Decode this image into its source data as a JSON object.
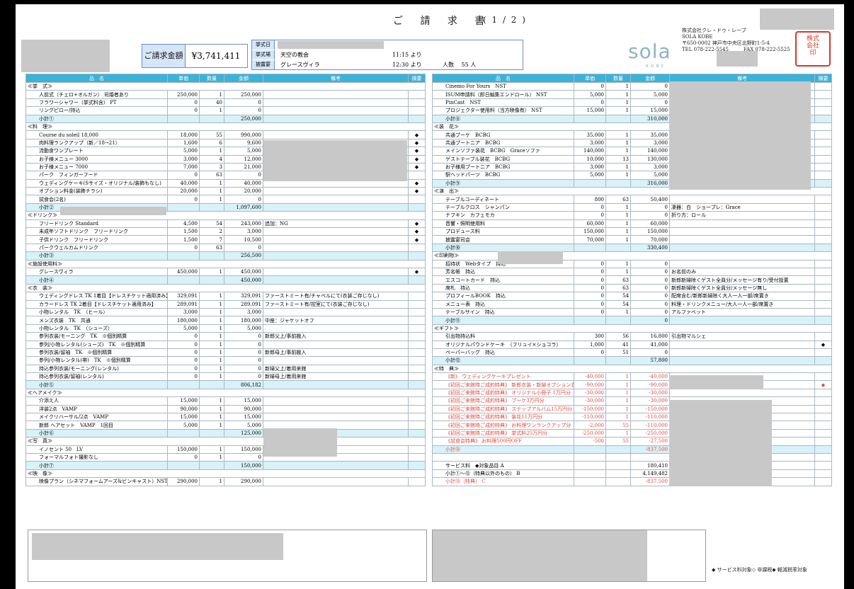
{
  "title": "ご 請 求 書",
  "page": "( 1 / 2 )",
  "total": {
    "label": "ご請求金額",
    "value": "¥3,741,411"
  },
  "event": {
    "rows": [
      {
        "label": "挙式日",
        "value": "",
        "time": ""
      },
      {
        "label": "挙式場",
        "value": "天空の教会",
        "time": "11:15 より"
      },
      {
        "label": "披露宴",
        "value": "グレースヴィラ",
        "time": "12:30 より"
      }
    ],
    "party": "人数　 55 人"
  },
  "logo": {
    "text": "sola",
    "sub": "KOBE"
  },
  "company": {
    "lines": [
      "株式会社クレ・ドゥ・レーブ",
      "SOLA KOBE",
      "〒650-0002 神戸市中央区北野町1-5-4",
      "TEL 078-222-5545　　　FAX 078-222-5525"
    ]
  },
  "stamp": "株式会社クレドゥレーブ印",
  "headers": [
    "品　名",
    "単価",
    "数量",
    "金額",
    "備考",
    "摘要"
  ],
  "left": [
    {
      "t": "s",
      "n": "≪挙　式≫"
    },
    {
      "n": "人前式（チェロ+オルガン） 司婚者あり",
      "p": "250,000",
      "q": "1",
      "a": "250,000"
    },
    {
      "n": "フラワーシャワー（挙式料含） PT",
      "p": "0",
      "q": "40",
      "a": "0"
    },
    {
      "n": "リングピロー/持込",
      "p": "0",
      "q": "1",
      "a": "0"
    },
    {
      "t": "u",
      "n": "小計①",
      "a": "250,000"
    },
    {
      "t": "s",
      "n": "≪料　理≫"
    },
    {
      "n": "Course du soleil 18,000",
      "p": "18,000",
      "q": "55",
      "a": "990,000",
      "m": "◆"
    },
    {
      "n": "肉料理ランクアップ（新／18→21）",
      "p": "1,600",
      "q": "6",
      "a": "9,600",
      "m": "◆"
    },
    {
      "n": "流動食ワンプレート",
      "p": "5,000",
      "q": "1",
      "a": "5,000",
      "m": "◆"
    },
    {
      "n": "お子様メニュー 3000",
      "p": "3,000",
      "q": "4",
      "a": "12,000",
      "m": "◆"
    },
    {
      "n": "お子様メニュー 7000",
      "p": "7,000",
      "q": "3",
      "a": "21,000",
      "m": "◆"
    },
    {
      "n": "パーク　フィンガーフード",
      "p": "0",
      "q": "63",
      "a": "0"
    },
    {
      "n": "ウェディングケーキ(Sサイズ・オリジナル/装飾もなし)",
      "p": "40,000",
      "q": "1",
      "a": "40,000",
      "m": "◆"
    },
    {
      "n": "オプション料金(装飾チラシ)",
      "p": "20,000",
      "q": "1",
      "a": "20,000",
      "m": "◆"
    },
    {
      "n": "試食会(2名)",
      "p": "0",
      "q": "1",
      "a": "0"
    },
    {
      "t": "u",
      "n": "小計②",
      "a": "1,097,600"
    },
    {
      "t": "s",
      "n": "≪ドリンク≫"
    },
    {
      "n": "フリードリンク Standard",
      "p": "4,500",
      "q": "54",
      "a": "243,000",
      "b": "追加：NG",
      "m": "◆"
    },
    {
      "n": "未成年ソフトドリンク　フリードリンク",
      "p": "1,500",
      "q": "2",
      "a": "3,000",
      "m": "◆"
    },
    {
      "n": "子供ドリンク　フリードリンク",
      "p": "1,500",
      "q": "7",
      "a": "10,500",
      "m": "◆"
    },
    {
      "n": "パークウェルカムドリンク",
      "p": "0",
      "q": "63",
      "a": "0"
    },
    {
      "t": "u",
      "n": "小計③",
      "a": "256,500"
    },
    {
      "t": "s",
      "n": "≪施設使用料≫"
    },
    {
      "n": "グレースヴィラ",
      "p": "450,000",
      "q": "1",
      "a": "450,000",
      "m": "◆"
    },
    {
      "t": "u",
      "n": "小計④",
      "a": "450,000"
    },
    {
      "t": "s",
      "n": "≪衣　装≫"
    },
    {
      "n": "ウェディングドレス TK 1着目【ドレスチケット適用済み】",
      "p": "329,091",
      "q": "1",
      "a": "329,091",
      "b": "ファーストミート有/チャペルにて(衣装ご存じなし)"
    },
    {
      "n": "カラードレス TK 2着目【ドレスチケット適用済み】",
      "p": "289,091",
      "q": "1",
      "a": "289,091",
      "b": "ファーストミート有/控室にて(衣装ご存じなし)"
    },
    {
      "n": "小物レンタル　TK　（ヒール）",
      "p": "3,000",
      "q": "1",
      "a": "3,000"
    },
    {
      "n": "メンズ衣装　TK　共通",
      "p": "180,000",
      "q": "1",
      "a": "180,000",
      "b": "中座：ジャケットオフ"
    },
    {
      "n": "小物レンタル　TK　（シューズ）",
      "p": "5,000",
      "q": "1",
      "a": "5,000"
    },
    {
      "n": "参列衣装/モーニング　TK　※個別精算",
      "p": "0",
      "q": "1",
      "a": "0",
      "b": "新郎父上/事前搬入"
    },
    {
      "n": "参列/小物レンタル(シューズ)　TK　※個別精算",
      "p": "0",
      "q": "1",
      "a": "0"
    },
    {
      "n": "参列衣装/留袖　TK　※個別精算",
      "p": "0",
      "q": "1",
      "a": "0",
      "b": "新郎母上/事前搬入"
    },
    {
      "n": "参列/小物レンタル(帯)　TK　※個別精算",
      "p": "0",
      "q": "1",
      "a": "0"
    },
    {
      "n": "持込参列衣装/モーニング(レンタル)",
      "p": "0",
      "q": "1",
      "a": "0",
      "b": "新婦父上/着用来館"
    },
    {
      "n": "持込参列衣装/留袖(レンタル)",
      "p": "0",
      "q": "1",
      "a": "0",
      "b": "新婦母上/着用来館"
    },
    {
      "t": "u",
      "n": "小計⑤",
      "a": "806,182"
    },
    {
      "t": "s",
      "n": "≪ヘアメイク≫"
    },
    {
      "n": "介添え人",
      "p": "15,000",
      "q": "1",
      "a": "15,000"
    },
    {
      "n": "洋装2点　VAMP",
      "p": "90,000",
      "q": "1",
      "a": "90,000"
    },
    {
      "n": "メイクリハーサル/2点　VAMP",
      "p": "15,000",
      "q": "1",
      "a": "15,000"
    },
    {
      "n": "新郎 ヘアセット　VAMP　1回目",
      "p": "5,000",
      "q": "1",
      "a": "5,000"
    },
    {
      "t": "u",
      "n": "小計⑥",
      "a": "125,000"
    },
    {
      "t": "s",
      "n": "≪写　真≫"
    },
    {
      "n": "イノセント 50　LV",
      "p": "150,000",
      "q": "1",
      "a": "150,000"
    },
    {
      "n": "フォーマルフォト撮影なし",
      "p": "0",
      "q": "1",
      "a": "0"
    },
    {
      "t": "u",
      "n": "小計⑦",
      "a": "150,000"
    },
    {
      "t": "s",
      "n": "≪映　像≫"
    },
    {
      "n": "映像プラン（シネマフォームアーズ&ビンキャスト）NST",
      "p": "290,000",
      "q": "1",
      "a": "290,000"
    }
  ],
  "right": [
    {
      "n": "Cinemo For Yours　NST",
      "p": "0",
      "q": "1",
      "a": "0"
    },
    {
      "n": "ISUM申請料（即日編集エンドロール） NST",
      "p": "5,000",
      "q": "1",
      "a": "5,000"
    },
    {
      "n": "PinCast　NST",
      "p": "0",
      "q": "1",
      "a": "0"
    },
    {
      "n": "プロジェクター使用料（当方映像有） NST",
      "p": "15,000",
      "q": "1",
      "a": "15,000"
    },
    {
      "t": "u",
      "n": "小計⑧",
      "a": "310,000"
    },
    {
      "t": "s",
      "n": "≪装　花≫"
    },
    {
      "n": "共通ブーケ　BCBG",
      "p": "35,000",
      "q": "1",
      "a": "35,000"
    },
    {
      "n": "共通ブートニア　BCBG",
      "p": "3,000",
      "q": "1",
      "a": "3,000"
    },
    {
      "n": "メインソファ装花　BCBG　Graceソファ",
      "p": "140,000",
      "q": "1",
      "a": "140,000"
    },
    {
      "n": "ゲストテーブル装花　BCBG",
      "p": "10,000",
      "q": "13",
      "a": "130,000"
    },
    {
      "n": "お子様用ブートニア　BCBG",
      "p": "3,000",
      "q": "1",
      "a": "3,000"
    },
    {
      "n": "駅ヘッドパーツ　BCBG",
      "p": "5,000",
      "q": "1",
      "a": "5,000"
    },
    {
      "t": "u",
      "n": "小計⑨",
      "a": "316,000"
    },
    {
      "t": "s",
      "n": "≪演　出≫"
    },
    {
      "n": "テーブルコーディネート",
      "p": "800",
      "q": "63",
      "a": "50,400"
    },
    {
      "n": "テーブルクロス　シャンパン",
      "p": "0",
      "q": "1",
      "a": "0",
      "b": "凄器：白　ショープレ：Grace"
    },
    {
      "n": "ナフキン　カフェモカ",
      "p": "0",
      "q": "1",
      "a": "0",
      "b": "折り方：ロール"
    },
    {
      "n": "音響・照明使用料",
      "p": "60,000",
      "q": "1",
      "a": "60,000"
    },
    {
      "n": "プロデュース料",
      "p": "150,000",
      "q": "1",
      "a": "150,000"
    },
    {
      "n": "披露宴司会",
      "p": "70,000",
      "q": "1",
      "a": "70,000"
    },
    {
      "t": "u",
      "n": "小計⑩",
      "a": "330,400"
    },
    {
      "t": "s",
      "n": "≪印刷物≫"
    },
    {
      "n": "招待状　Webタイプ　持込",
      "p": "0",
      "q": "1",
      "a": "0"
    },
    {
      "n": "芳名帳　持込",
      "p": "0",
      "q": "1",
      "a": "0",
      "b": "お名前のみ"
    },
    {
      "n": "エスコートカード　持込",
      "p": "0",
      "q": "63",
      "a": "0",
      "b": "新郎新婦除くゲスト全員分/メッセージ有り/受付設置"
    },
    {
      "n": "席札　持込",
      "p": "0",
      "q": "63",
      "a": "0",
      "b": "新郎新婦除くゲスト全員分/メッセージ無し"
    },
    {
      "n": "プロフィールBOOK　持込",
      "p": "0",
      "q": "54",
      "a": "0",
      "b": "配席含む/新郎新婦除く大人一人一部/席置き"
    },
    {
      "n": "メニュー表　持込",
      "p": "0",
      "q": "54",
      "a": "0",
      "b": "料理・ドリンクメニュー/大人一人一部/席置き"
    },
    {
      "n": "テーブルサイン　持込",
      "p": "0",
      "q": "1",
      "a": "0",
      "b": "アルファベット"
    },
    {
      "t": "u",
      "n": "小計⑪",
      "a": "0"
    },
    {
      "t": "s",
      "n": "≪ギフト≫"
    },
    {
      "n": "引出物持込料",
      "p": "300",
      "q": "56",
      "a": "16,800",
      "b": "引出物マルシェ"
    },
    {
      "n": "オリジナルパウンドケーキ　（フリュイ×ショコラ）",
      "p": "1,000",
      "q": "41",
      "a": "41,000",
      "m": "◆"
    },
    {
      "n": "ペーパーバッグ　持込",
      "p": "0",
      "q": "51",
      "a": "0"
    },
    {
      "t": "u",
      "n": "小計⑫",
      "a": "57,800"
    },
    {
      "t": "s",
      "n": "≪特　典≫"
    },
    {
      "t": "red",
      "n": "《新》 ウェディングケーキプレゼント",
      "p": "-40,000",
      "q": "1",
      "a": "-40,000"
    },
    {
      "t": "red",
      "n": "《初回ご来館時ご成約特典》 新郎衣装・新婦オプション衣装",
      "p": "-90,000",
      "q": "1",
      "a": "-90,000",
      "m": "◆"
    },
    {
      "t": "red",
      "n": "《初回ご来館時ご成約特典》 オリジナル小冊子 1万円分",
      "p": "-30,000",
      "q": "1",
      "a": "-30,000"
    },
    {
      "t": "red",
      "n": "《初回ご来館時ご成約特典》 ブーケ3万円分",
      "p": "-30,000",
      "q": "1",
      "a": "-30,000"
    },
    {
      "t": "red",
      "n": "《初回ご来館時ご成約特典》 スナップアルバム15万円分",
      "p": "-150,000",
      "q": "1",
      "a": "-150,000"
    },
    {
      "t": "red",
      "n": "《初回ご来館時ご成約特典》 装花11万円分",
      "p": "-110,000",
      "q": "1",
      "a": "-110,000"
    },
    {
      "t": "red",
      "n": "《初回ご来館時ご成約特典》 お料理ワンランクアップ分",
      "p": "-2,000",
      "q": "55",
      "a": "-110,000"
    },
    {
      "t": "red",
      "n": "《初回ご来館時ご成約特典》 挙式料25万円分",
      "p": "-250,000",
      "q": "1",
      "a": "-250,000"
    },
    {
      "t": "red",
      "n": "《試食会特典》 お料理500円OFF",
      "p": "-500",
      "q": "55",
      "a": "-27,500"
    },
    {
      "t": "red",
      "n": "小計⑬",
      "p": "",
      "q": "",
      "a": "-837,500",
      "sub": true
    },
    {
      "n": "",
      "p": "",
      "q": "",
      "a": ""
    },
    {
      "n": "サービス料　◆対象品目 A",
      "p": "",
      "q": "",
      "a": "180,410"
    },
    {
      "n": "小計①～⑫（特典以外のもの） B",
      "p": "",
      "q": "",
      "a": "4,149,482"
    },
    {
      "t": "red",
      "n": "小計⑬（特典） C",
      "p": "",
      "q": "",
      "a": "-837,500"
    }
  ],
  "legend": "◆ サービス料対象◇ 非課税◆ 軽減税率対象"
}
